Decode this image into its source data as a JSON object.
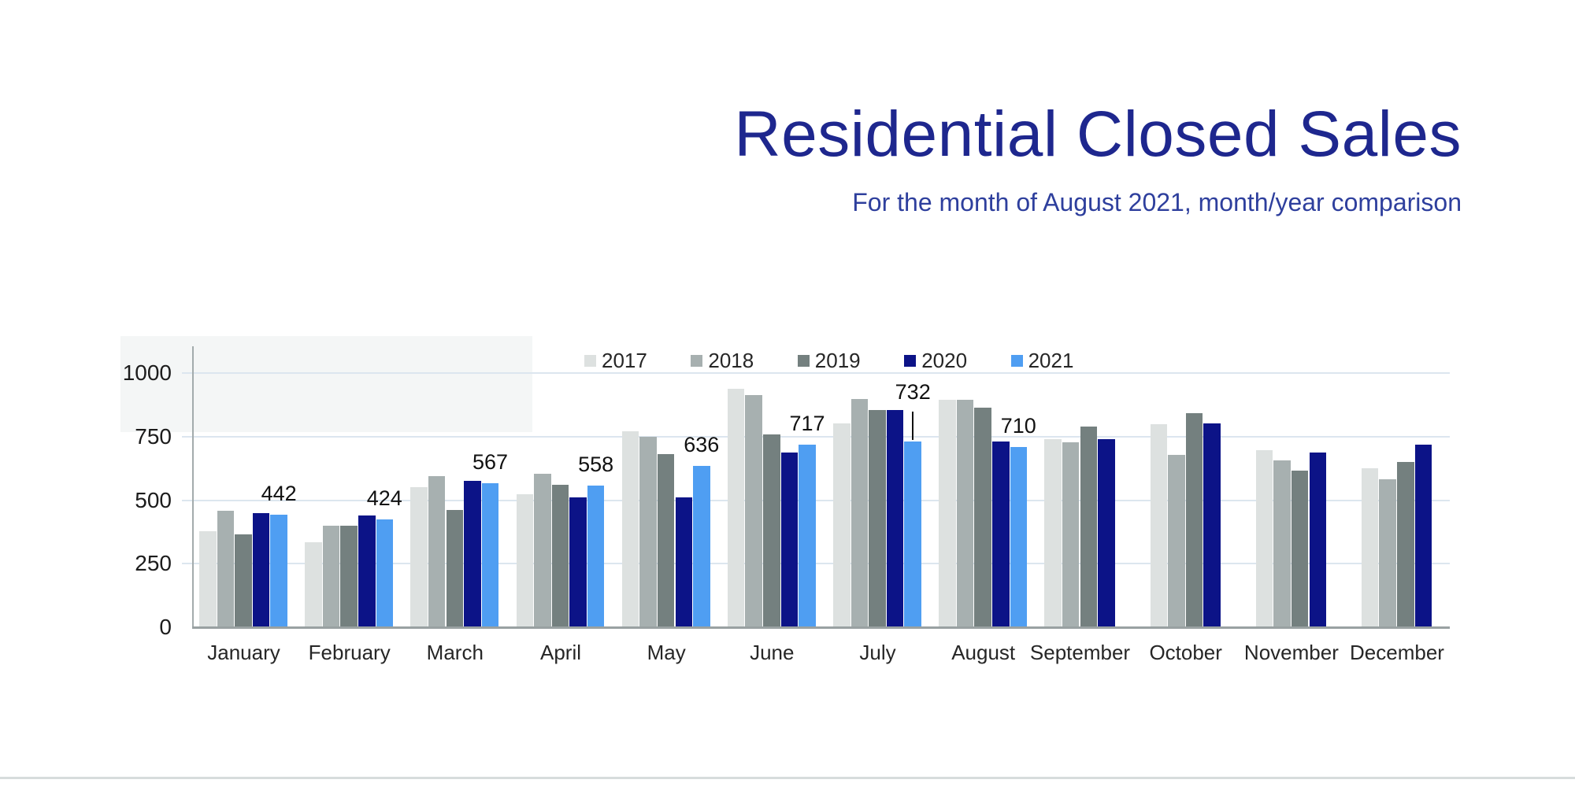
{
  "header": {
    "title": "Residential Closed Sales",
    "subtitle": "For the month of August 2021, month/year comparison",
    "title_color": "#1e278e",
    "subtitle_color": "#2e3f9d"
  },
  "chart_data": {
    "type": "bar",
    "title": "Residential Closed Sales",
    "subtitle": "For the month of August 2021, month/year comparison",
    "categories": [
      "January",
      "February",
      "March",
      "April",
      "May",
      "June",
      "July",
      "August",
      "September",
      "October",
      "November",
      "December"
    ],
    "series": [
      {
        "name": "2017",
        "color": "#dde1e0",
        "values": [
          377,
          336,
          552,
          523,
          771,
          938,
          801,
          896,
          739,
          800,
          697,
          624
        ]
      },
      {
        "name": "2018",
        "color": "#a7b0b0",
        "values": [
          459,
          398,
          595,
          605,
          750,
          915,
          897,
          895,
          729,
          678,
          657,
          583
        ]
      },
      {
        "name": "2019",
        "color": "#74807f",
        "values": [
          367,
          398,
          460,
          562,
          680,
          760,
          854,
          864,
          791,
          842,
          616,
          649
        ]
      },
      {
        "name": "2020",
        "color": "#0c1387",
        "values": [
          450,
          439,
          575,
          511,
          511,
          689,
          855,
          730,
          739,
          802,
          688,
          719
        ]
      },
      {
        "name": "2021",
        "color": "#4f9ef2",
        "values": [
          442,
          424,
          567,
          558,
          636,
          717,
          732,
          710,
          null,
          null,
          null,
          null
        ],
        "data_labels": true
      }
    ],
    "data_labels_2021": [
      442,
      424,
      567,
      558,
      636,
      717,
      732,
      710
    ],
    "data_label_leader_category": "July",
    "ylim": [
      0,
      1000
    ],
    "yticks": [
      0,
      250,
      500,
      750,
      1000
    ],
    "grid": "horizontal",
    "legend_position": "top-center",
    "gridline_color": "#dce6ef",
    "axis_color": "#99a1a2"
  }
}
